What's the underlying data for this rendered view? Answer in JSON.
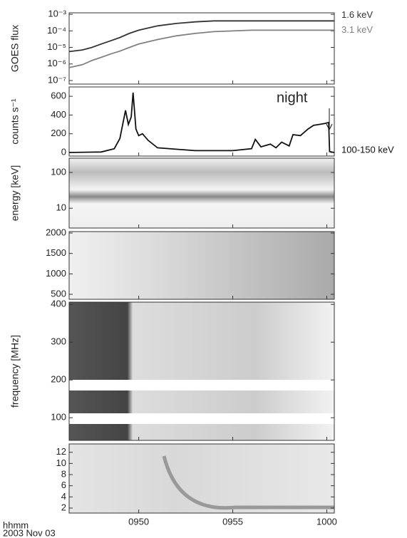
{
  "chart_data": [
    {
      "type": "line",
      "ylabel": "GOES flux",
      "log": true,
      "ylim": [
        6.1e-08,
        0.00123
      ],
      "yticks": [
        {
          "value": 0.001,
          "label": "10⁻³"
        },
        {
          "value": 0.0001,
          "label": "10⁻⁴"
        },
        {
          "value": 1e-05,
          "label": "10⁻⁵"
        },
        {
          "value": 1e-06,
          "label": "10⁻⁶"
        },
        {
          "value": 1e-07,
          "label": "10⁻⁷"
        }
      ],
      "x": [
        46.3,
        47,
        47.5,
        48,
        48.5,
        49,
        49.5,
        50,
        51,
        52,
        53,
        54,
        56,
        58,
        60.4
      ],
      "series": [
        {
          "name": "1.6 keV",
          "color": "#333333",
          "values": [
            5.6e-06,
            7e-06,
            1e-05,
            1.6e-05,
            2.5e-05,
            4e-05,
            7e-05,
            0.00011,
            0.0002,
            0.00028,
            0.00035,
            0.0004,
            0.0004,
            0.0004,
            0.0004
          ]
        },
        {
          "name": "3.1 keV",
          "color": "#808080",
          "values": [
            6e-07,
            9e-07,
            1.6e-06,
            2.5e-06,
            4e-06,
            6e-06,
            1e-05,
            1.6e-05,
            3e-05,
            5e-05,
            7e-05,
            9e-05,
            0.00011,
            0.00011,
            0.00011
          ]
        }
      ]
    },
    {
      "type": "line",
      "ylabel": "counts s⁻¹",
      "ylim": [
        -38,
        700
      ],
      "yticks": [
        0,
        200,
        400,
        600
      ],
      "x": [
        46.3,
        48,
        48.7,
        49,
        49.3,
        49.45,
        49.6,
        49.7,
        49.85,
        50,
        50.2,
        50.5,
        51,
        53,
        55,
        56,
        56.2,
        56.5,
        57,
        57.3,
        57.6,
        58,
        58.2,
        58.6,
        59,
        59.3,
        59.6,
        59.9,
        60.1,
        60.15,
        60.4
      ],
      "series": [
        {
          "name": "100-150 keV",
          "color": "#111111",
          "values": [
            0,
            5,
            40,
            150,
            450,
            300,
            380,
            640,
            250,
            180,
            200,
            130,
            50,
            20,
            20,
            40,
            140,
            60,
            90,
            50,
            110,
            70,
            190,
            180,
            250,
            290,
            300,
            310,
            320,
            10,
            0
          ]
        }
      ],
      "annotation": "night"
    },
    {
      "type": "spectrogram",
      "ylabel": "energy [keV]",
      "log": true,
      "ylim": [
        2.8,
        250
      ],
      "yticks": [
        10,
        100
      ]
    },
    {
      "type": "spectrogram",
      "ylim": [
        378,
        2035
      ],
      "yticks": [
        500,
        1000,
        1500,
        2000
      ]
    },
    {
      "type": "spectrogram",
      "ylabel": "frequency [MHz]",
      "ylim": [
        40,
        406
      ],
      "yticks": [
        100,
        200,
        300,
        400
      ]
    },
    {
      "type": "spectrogram",
      "ylim": [
        1.1,
        13.5
      ],
      "yticks": [
        2,
        4,
        6,
        8,
        10,
        12
      ]
    }
  ],
  "x_axis": {
    "xlim": [
      46.3,
      60.4
    ],
    "xticks": [
      {
        "value": 50,
        "label": "0950"
      },
      {
        "value": 55,
        "label": "0955"
      },
      {
        "value": 60,
        "label": "1000"
      }
    ],
    "label": "hhmm",
    "date": "2003 Nov 03"
  }
}
